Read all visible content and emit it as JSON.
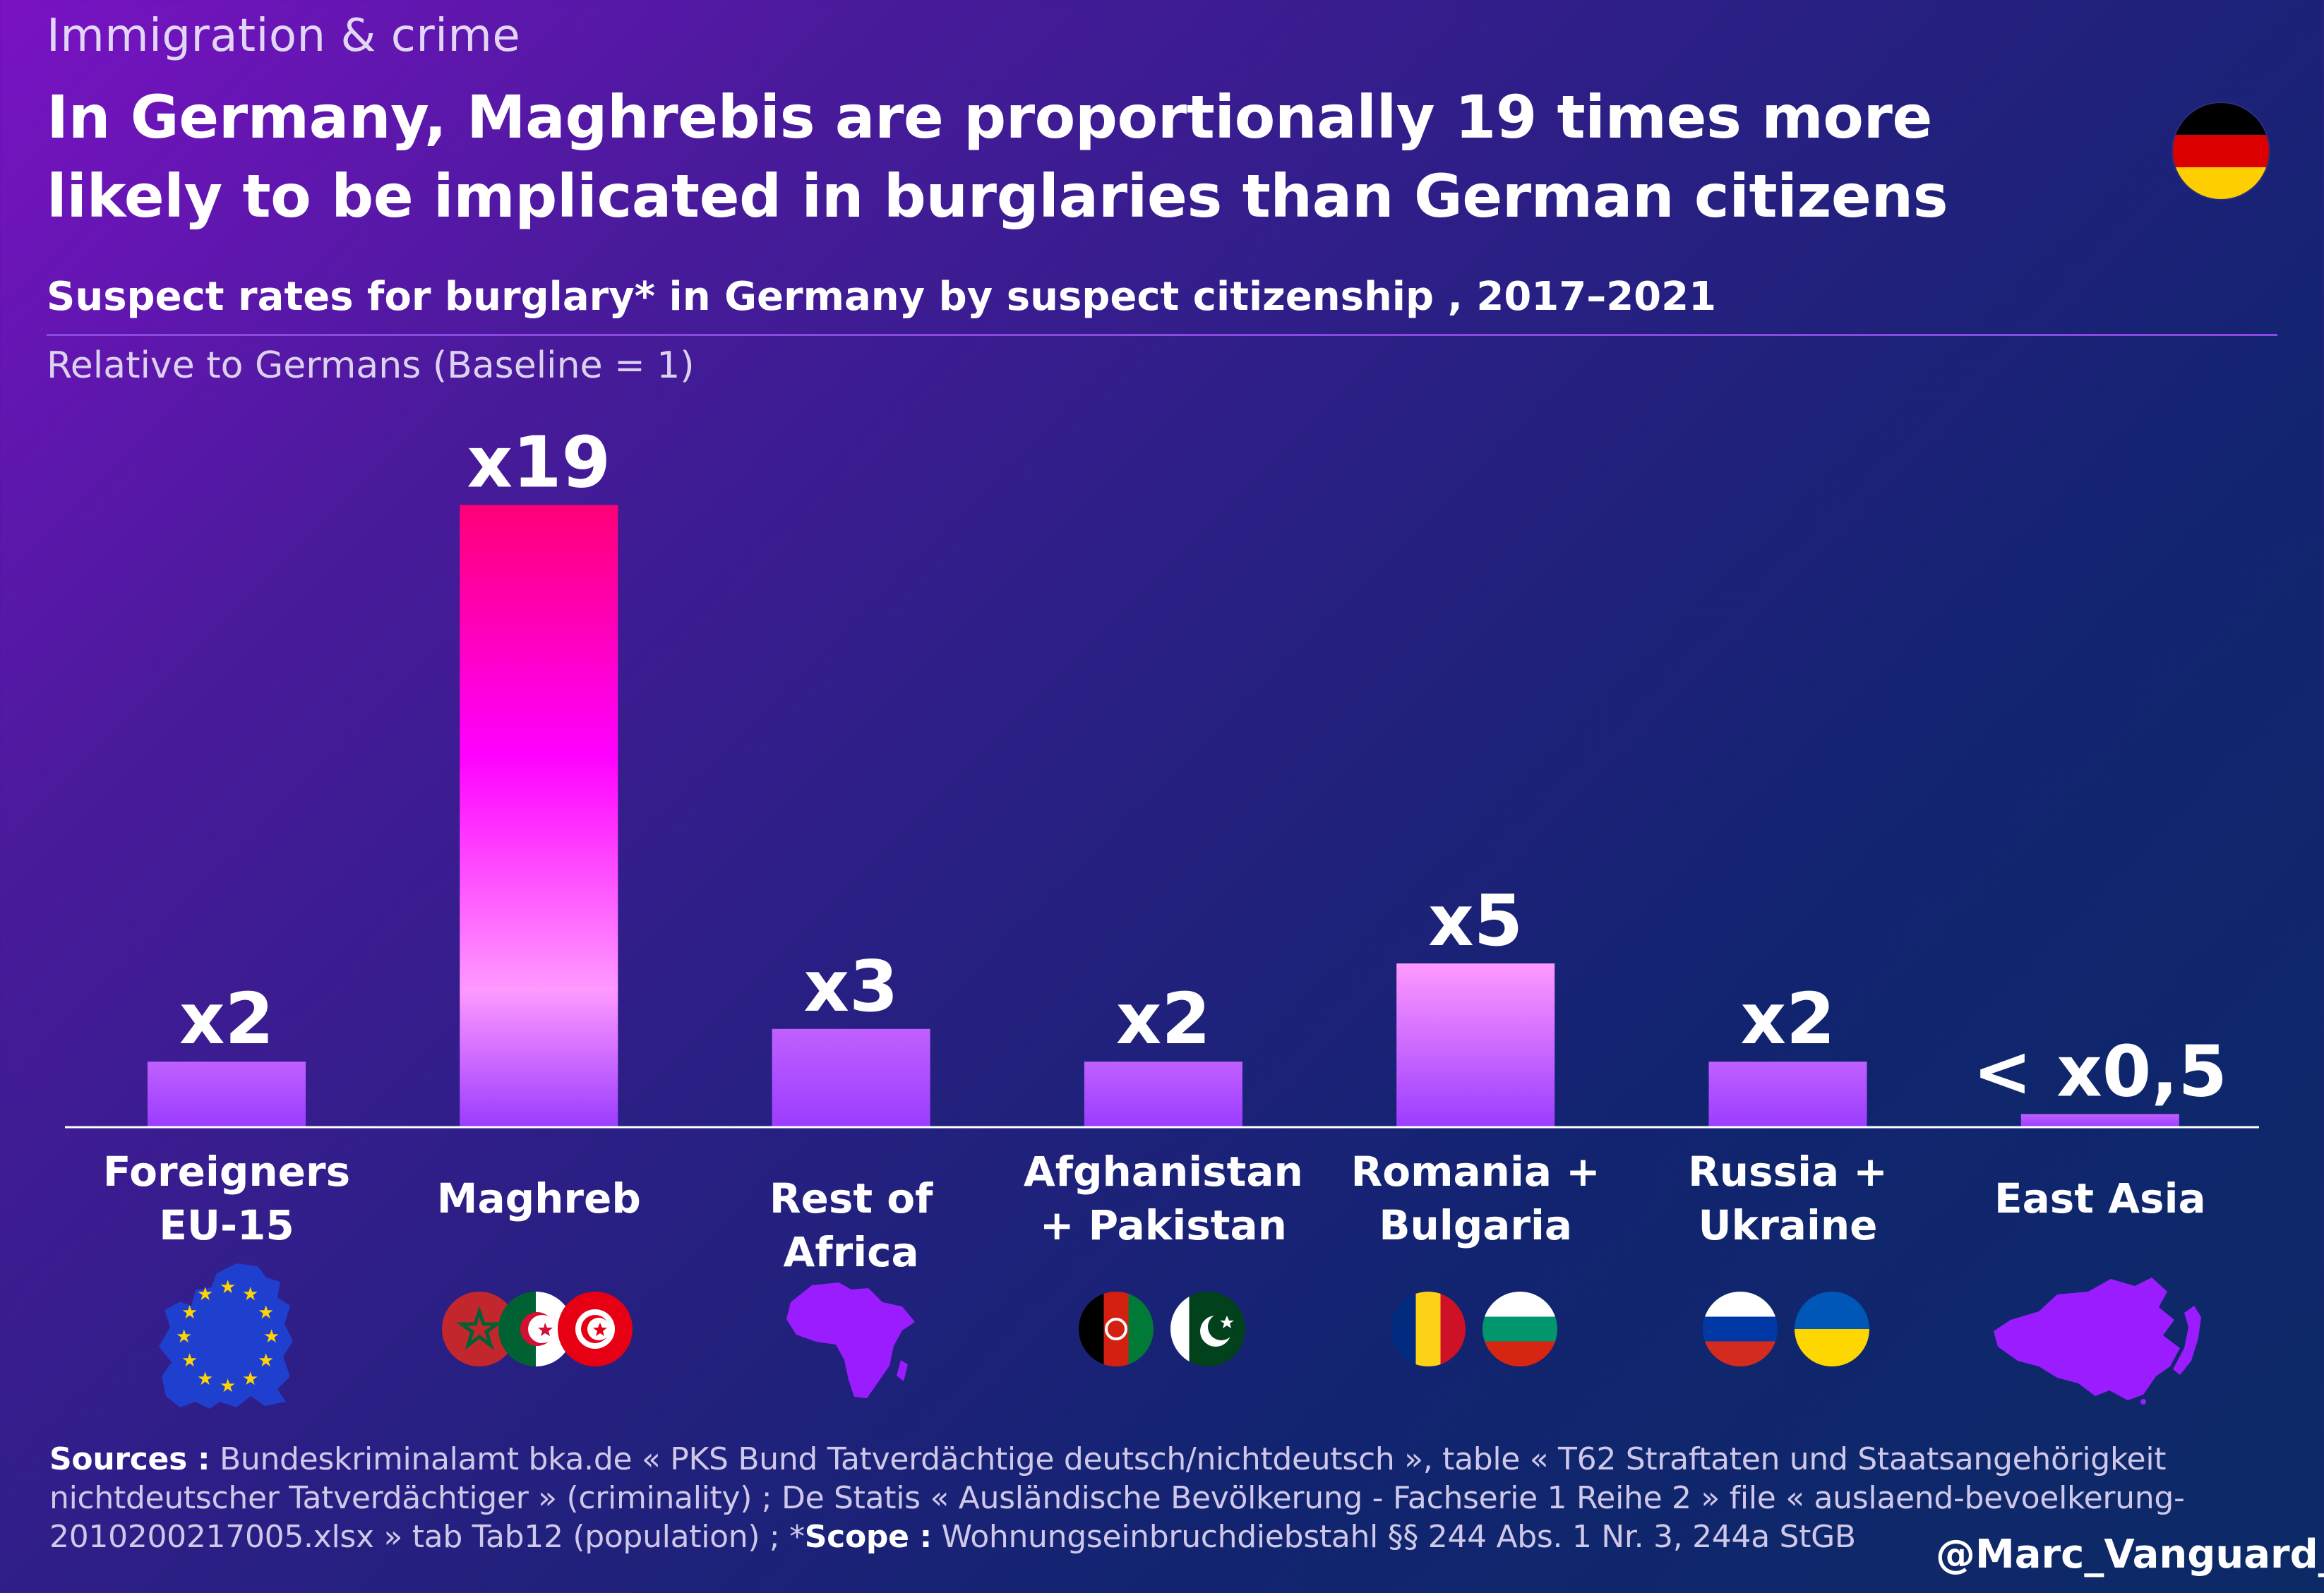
{
  "header": {
    "supertitle": "Immigration & crime",
    "headline": "In Germany, Maghrebis are proportionally 19 times more likely to be implicated in burglaries than German citizens",
    "subtitle": "Suspect rates for burglary* in Germany by suspect citizenship , 2017–2021",
    "unit_note": "Relative to Germans (Baseline = 1)",
    "flag_icon": "germany-flag-icon"
  },
  "chart_data": {
    "type": "bar",
    "title": "Suspect rates for burglary* in Germany by suspect citizenship , 2017–2021",
    "ylabel": "Relative to Germans (Baseline = 1)",
    "categories": [
      "Foreigners\nEU-15",
      "Maghreb",
      "Rest of Africa",
      "Afghanistan\n+ Pakistan",
      "Romania +\nBulgaria",
      "Russia +\nUkraine",
      "East Asia"
    ],
    "values": [
      2,
      19,
      3,
      2,
      5,
      2,
      0.4
    ],
    "data_labels": [
      "x2",
      "x19",
      "x3",
      "x2",
      "x5",
      "x2",
      "< x0,5"
    ],
    "ylim": [
      0,
      19
    ],
    "grid": false,
    "legend": "none",
    "colors": {
      "bar_base": "#9b3cff",
      "bar_mid": "#ff99ff",
      "bar_top_high": "#ff0099",
      "bar_mid_high": "#ff00ff"
    }
  },
  "category_icons": [
    {
      "icons": [
        "eu-map-icon"
      ]
    },
    {
      "icons": [
        "morocco-flag-icon",
        "algeria-flag-icon",
        "tunisia-flag-icon"
      ]
    },
    {
      "icons": [
        "africa-map-icon"
      ]
    },
    {
      "icons": [
        "afghanistan-flag-icon",
        "pakistan-flag-icon"
      ]
    },
    {
      "icons": [
        "romania-flag-icon",
        "bulgaria-flag-icon"
      ]
    },
    {
      "icons": [
        "russia-flag-icon",
        "ukraine-flag-icon"
      ]
    },
    {
      "icons": [
        "east-asia-map-icon"
      ]
    }
  ],
  "footer": {
    "sources_label": "Sources :",
    "sources_text": " Bundeskriminalamt bka.de « PKS Bund Tatverdächtige deutsch/nichtdeutsch », table « T62 Straftaten und Staatsangehörigkeit nichtdeutscher Tatverdächtiger » (criminality) ; De Statis « Ausländische Bevölkerung - Fachserie 1 Reihe 2 » file « auslaend-bevoelkerung-2010200217005.xlsx » tab Tab12 (population) ; *",
    "scope_label": "Scope :",
    "scope_text": " Wohnungseinbruchdiebstahl §§ 244 Abs. 1 Nr. 3, 244a StGB",
    "handle": "@Marc_Vanguard_i"
  },
  "colors": {
    "accent_rule": "#8a4ae0",
    "icon_purple": "#9b1cff",
    "eu_blue": "#1f3fcf"
  }
}
